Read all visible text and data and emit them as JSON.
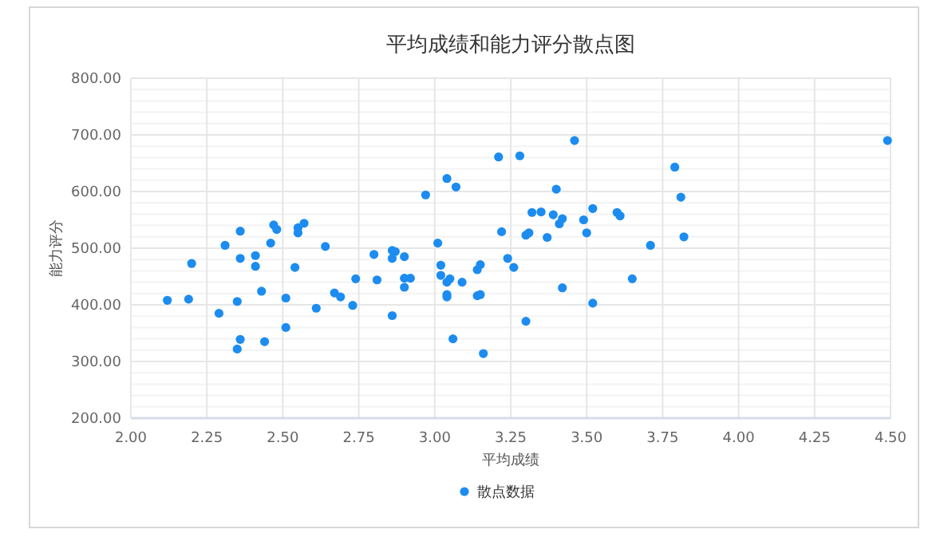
{
  "chart_data": {
    "type": "scatter",
    "title": "平均成绩和能力评分散点图",
    "xlabel": "平均成绩",
    "ylabel": "能力评分",
    "marker": "circle",
    "grid": true,
    "legend": "bottom",
    "xlim": [
      2,
      4.5
    ],
    "ylim": [
      200,
      800
    ],
    "xticks": [
      {
        "value": 2,
        "label": "2.00"
      },
      {
        "value": 2.25,
        "label": "2.25"
      },
      {
        "value": 2.5,
        "label": "2.50"
      },
      {
        "value": 2.75,
        "label": "2.75"
      },
      {
        "value": 3,
        "label": "3.00"
      },
      {
        "value": 3.25,
        "label": "3.25"
      },
      {
        "value": 3.5,
        "label": "3.50"
      },
      {
        "value": 3.75,
        "label": "3.75"
      },
      {
        "value": 4,
        "label": "4.00"
      },
      {
        "value": 4.25,
        "label": "4.25"
      },
      {
        "value": 4.5,
        "label": "4.50"
      }
    ],
    "yticks": [
      {
        "value": 200,
        "label": "200.00"
      },
      {
        "value": 300,
        "label": "300.00"
      },
      {
        "value": 400,
        "label": "400.00"
      },
      {
        "value": 500,
        "label": "500.00"
      },
      {
        "value": 600,
        "label": "600.00"
      },
      {
        "value": 700,
        "label": "700.00"
      },
      {
        "value": 800,
        "label": "800.00"
      }
    ],
    "series": [
      {
        "name": "散点数据",
        "color": "#1c8cf0",
        "x": [
          2.12,
          2.19,
          2.2,
          2.29,
          2.31,
          2.35,
          2.35,
          2.36,
          2.36,
          2.36,
          2.41,
          2.41,
          2.43,
          2.44,
          2.46,
          2.47,
          2.48,
          2.51,
          2.51,
          2.54,
          2.55,
          2.55,
          2.57,
          2.61,
          2.64,
          2.67,
          2.69,
          2.73,
          2.74,
          2.8,
          2.81,
          2.86,
          2.87,
          2.86,
          2.86,
          2.9,
          2.9,
          2.92,
          2.9,
          2.97,
          3.01,
          3.02,
          3.02,
          3.04,
          3.04,
          3.05,
          3.04,
          3.04,
          3.06,
          3.07,
          3.09,
          3.14,
          3.15,
          3.14,
          3.15,
          3.16,
          3.21,
          3.22,
          3.24,
          3.26,
          3.28,
          3.3,
          3.31,
          3.3,
          3.32,
          3.35,
          3.37,
          3.39,
          3.4,
          3.41,
          3.42,
          3.42,
          3.46,
          3.49,
          3.5,
          3.52,
          3.52,
          3.6,
          3.61,
          3.65,
          3.71,
          3.79,
          3.81,
          3.82,
          4.49
        ],
        "values": [
          408,
          410,
          473,
          385,
          505,
          322,
          406,
          530,
          482,
          339,
          487,
          468,
          424,
          335,
          509,
          541,
          533,
          412,
          360,
          466,
          536,
          527,
          544,
          394,
          503,
          421,
          414,
          399,
          446,
          489,
          444,
          496,
          494,
          482,
          381,
          485,
          447,
          447,
          431,
          594,
          509,
          470,
          452,
          623,
          440,
          446,
          418,
          414,
          340,
          608,
          440,
          462,
          471,
          416,
          418,
          314,
          661,
          529,
          482,
          466,
          663,
          523,
          527,
          371,
          563,
          564,
          519,
          559,
          604,
          543,
          552,
          430,
          690,
          550,
          527,
          570,
          403,
          563,
          557,
          446,
          505,
          643,
          590,
          520,
          690
        ]
      }
    ]
  }
}
